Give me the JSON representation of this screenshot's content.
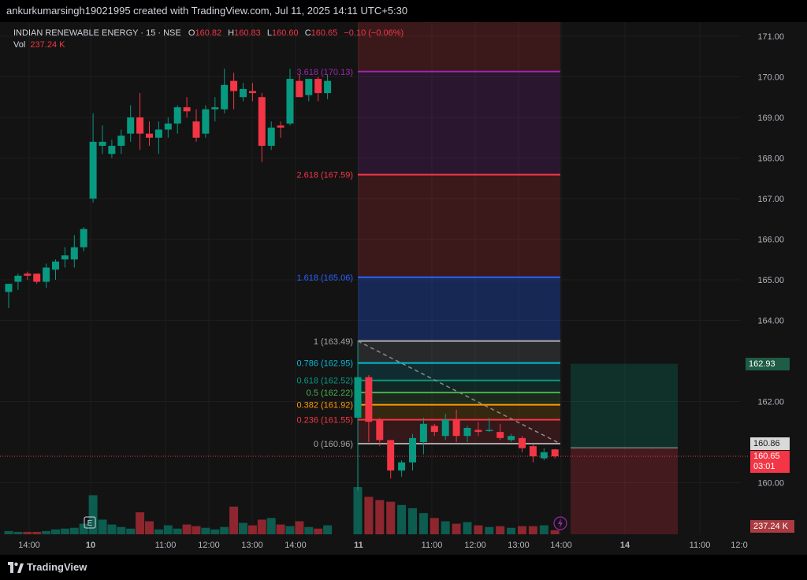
{
  "header": {
    "text": "ankurkumarsingh19021995 created with TradingView.com, Jul 11, 2025 14:11 UTC+5:30"
  },
  "legend": {
    "symbol": "INDIAN RENEWABLE ENERGY · 15 · NSE",
    "open_label": "O",
    "open": "160.82",
    "high_label": "H",
    "high": "160.83",
    "low_label": "L",
    "low": "160.60",
    "close_label": "C",
    "close": "160.65",
    "change": "−0.10 (−0.06%)",
    "vol_label": "Vol",
    "vol": "237.24 K"
  },
  "colors": {
    "up": "#089981",
    "down": "#f23645",
    "background": "#131313",
    "fib_0": "#a6a6a6",
    "fib_0236": "#f23645",
    "fib_0382": "#ff9800",
    "fib_05": "#4caf50",
    "fib_0618": "#089981",
    "fib_0786": "#00bcd4",
    "fib_1": "#a6a6a6",
    "fib_1618": "#2962ff",
    "fib_2618": "#f23645",
    "fib_3618": "#9c27b0"
  },
  "price_axis": [
    "171.00",
    "170.00",
    "169.00",
    "168.00",
    "167.00",
    "166.00",
    "165.00",
    "164.00",
    "162.00",
    "160.00"
  ],
  "time_axis": [
    "14:00",
    "10",
    "11:00",
    "12:00",
    "13:00",
    "14:00",
    "11",
    "11:00",
    "12:00",
    "13:00",
    "14:00",
    "14",
    "11:00",
    "12:0"
  ],
  "price_tags": {
    "target": "162.93",
    "stop": "160.86",
    "last": "160.65",
    "countdown": "03:01",
    "volume": "237.24 K"
  },
  "fib_levels": [
    {
      "label": "3.618 (170.13)",
      "price": 170.13
    },
    {
      "label": "2.618 (167.59)",
      "price": 167.59
    },
    {
      "label": "1.618 (165.06)",
      "price": 165.06
    },
    {
      "label": "1 (163.49)",
      "price": 163.49
    },
    {
      "label": "0.786 (162.95)",
      "price": 162.95
    },
    {
      "label": "0.618 (162.52)",
      "price": 162.52
    },
    {
      "label": "0.5 (162.22)",
      "price": 162.22
    },
    {
      "label": "0.382 (161.92)",
      "price": 161.92
    },
    {
      "label": "0.236 (161.55)",
      "price": 161.55
    },
    {
      "label": "0 (160.96)",
      "price": 160.96
    }
  ],
  "earnings_marker": "E",
  "footer": {
    "brand": "TradingView"
  },
  "chart_data": {
    "type": "candlestick",
    "price_range": [
      159.45,
      171.9
    ],
    "candles": [
      {
        "o": 164.7,
        "h": 164.9,
        "l": 164.3,
        "c": 164.9
      },
      {
        "o": 164.95,
        "h": 165.15,
        "l": 164.75,
        "c": 165.1
      },
      {
        "o": 165.15,
        "h": 165.2,
        "l": 165.0,
        "c": 165.1
      },
      {
        "o": 165.15,
        "h": 165.15,
        "l": 164.9,
        "c": 164.95
      },
      {
        "o": 164.95,
        "h": 165.4,
        "l": 164.8,
        "c": 165.3
      },
      {
        "o": 165.25,
        "h": 165.5,
        "l": 165.0,
        "c": 165.45
      },
      {
        "o": 165.5,
        "h": 165.8,
        "l": 165.3,
        "c": 165.6
      },
      {
        "o": 165.5,
        "h": 166.1,
        "l": 165.3,
        "c": 165.8
      },
      {
        "o": 165.8,
        "h": 166.3,
        "l": 165.7,
        "c": 166.25
      },
      {
        "o": 167.0,
        "h": 169.1,
        "l": 166.9,
        "c": 168.4
      },
      {
        "o": 168.3,
        "h": 168.8,
        "l": 168.1,
        "c": 168.4
      },
      {
        "o": 168.1,
        "h": 168.45,
        "l": 168.0,
        "c": 168.3
      },
      {
        "o": 168.3,
        "h": 168.7,
        "l": 168.1,
        "c": 168.55
      },
      {
        "o": 168.6,
        "h": 169.3,
        "l": 168.4,
        "c": 169.0
      },
      {
        "o": 169.0,
        "h": 169.6,
        "l": 168.2,
        "c": 168.6
      },
      {
        "o": 168.6,
        "h": 168.9,
        "l": 168.3,
        "c": 168.5
      },
      {
        "o": 168.5,
        "h": 168.9,
        "l": 168.1,
        "c": 168.7
      },
      {
        "o": 168.7,
        "h": 169.0,
        "l": 168.5,
        "c": 168.85
      },
      {
        "o": 168.85,
        "h": 169.3,
        "l": 168.6,
        "c": 169.25
      },
      {
        "o": 169.25,
        "h": 169.5,
        "l": 169.0,
        "c": 169.15
      },
      {
        "o": 168.9,
        "h": 169.2,
        "l": 168.4,
        "c": 168.5
      },
      {
        "o": 168.6,
        "h": 169.3,
        "l": 168.5,
        "c": 169.2
      },
      {
        "o": 169.2,
        "h": 169.5,
        "l": 168.9,
        "c": 169.25
      },
      {
        "o": 169.2,
        "h": 170.2,
        "l": 169.1,
        "c": 169.8
      },
      {
        "o": 169.9,
        "h": 170.1,
        "l": 169.2,
        "c": 169.65
      },
      {
        "o": 169.5,
        "h": 169.85,
        "l": 169.4,
        "c": 169.7
      },
      {
        "o": 169.65,
        "h": 169.85,
        "l": 169.4,
        "c": 169.6
      },
      {
        "o": 169.5,
        "h": 169.6,
        "l": 167.9,
        "c": 168.3
      },
      {
        "o": 168.3,
        "h": 168.9,
        "l": 168.2,
        "c": 168.75
      },
      {
        "o": 168.8,
        "h": 168.9,
        "l": 168.5,
        "c": 168.75
      },
      {
        "o": 168.85,
        "h": 170.2,
        "l": 168.8,
        "c": 169.95
      },
      {
        "o": 169.9,
        "h": 170.05,
        "l": 169.5,
        "c": 169.5
      },
      {
        "o": 169.55,
        "h": 169.9,
        "l": 169.4,
        "c": 169.95
      },
      {
        "o": 169.95,
        "h": 170.0,
        "l": 169.4,
        "c": 169.6
      },
      {
        "o": 169.6,
        "h": 170.05,
        "l": 169.45,
        "c": 169.9
      },
      {
        "o": 161.6,
        "h": 163.5,
        "l": 159.8,
        "c": 162.6
      },
      {
        "o": 162.6,
        "h": 162.65,
        "l": 161.0,
        "c": 161.5
      },
      {
        "o": 161.55,
        "h": 161.6,
        "l": 160.9,
        "c": 161.05
      },
      {
        "o": 161.05,
        "h": 161.05,
        "l": 160.1,
        "c": 160.3
      },
      {
        "o": 160.3,
        "h": 160.55,
        "l": 160.15,
        "c": 160.5
      },
      {
        "o": 160.5,
        "h": 161.2,
        "l": 160.3,
        "c": 161.1
      },
      {
        "o": 161.0,
        "h": 161.6,
        "l": 160.7,
        "c": 161.45
      },
      {
        "o": 161.4,
        "h": 161.45,
        "l": 161.15,
        "c": 161.25
      },
      {
        "o": 161.15,
        "h": 161.7,
        "l": 161.05,
        "c": 161.55
      },
      {
        "o": 161.55,
        "h": 161.8,
        "l": 161.0,
        "c": 161.15
      },
      {
        "o": 161.15,
        "h": 161.4,
        "l": 161.0,
        "c": 161.35
      },
      {
        "o": 161.3,
        "h": 161.5,
        "l": 161.15,
        "c": 161.25
      },
      {
        "o": 161.3,
        "h": 161.6,
        "l": 161.25,
        "c": 161.3
      },
      {
        "o": 161.25,
        "h": 161.45,
        "l": 161.05,
        "c": 161.1
      },
      {
        "o": 161.05,
        "h": 161.2,
        "l": 161.0,
        "c": 161.15
      },
      {
        "o": 161.1,
        "h": 161.15,
        "l": 160.75,
        "c": 160.85
      },
      {
        "o": 160.9,
        "h": 160.95,
        "l": 160.5,
        "c": 160.65
      },
      {
        "o": 160.6,
        "h": 160.85,
        "l": 160.55,
        "c": 160.75
      },
      {
        "o": 160.82,
        "h": 160.83,
        "l": 160.6,
        "c": 160.65
      }
    ],
    "volumes": [
      4,
      3,
      3,
      3,
      4,
      6,
      7,
      8,
      13,
      48,
      18,
      12,
      9,
      7,
      27,
      16,
      6,
      11,
      7,
      12,
      10,
      8,
      6,
      9,
      34,
      14,
      11,
      18,
      20,
      12,
      10,
      16,
      9,
      7,
      11,
      58,
      46,
      42,
      40,
      36,
      32,
      26,
      20,
      16,
      13,
      15,
      11,
      9,
      10,
      8,
      10,
      10,
      11,
      5
    ],
    "vol_max": 60
  }
}
